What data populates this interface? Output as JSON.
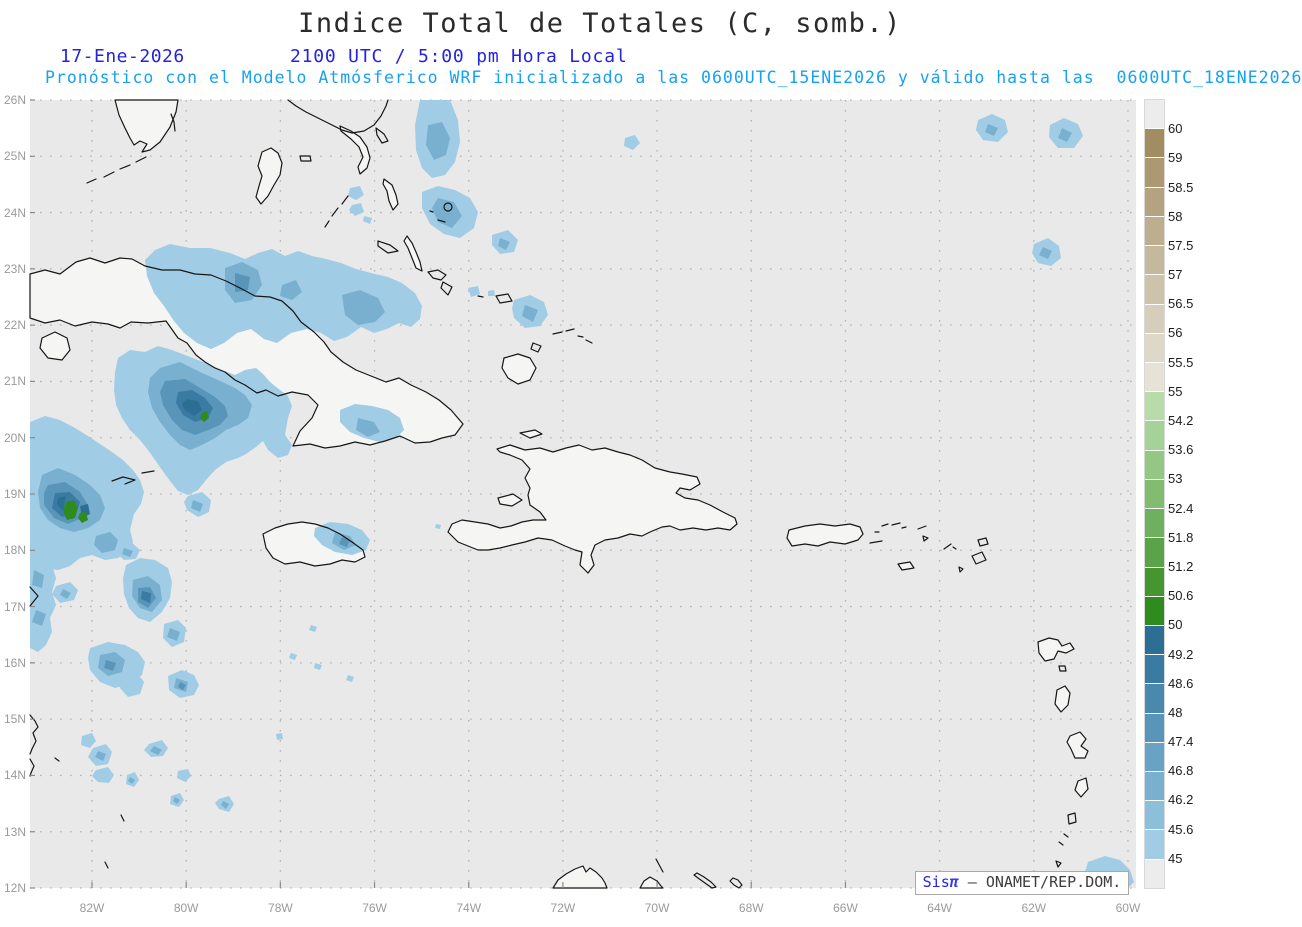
{
  "title": "Indice Total de Totales (C, somb.)",
  "subtitle": {
    "date": "17-Ene-2026",
    "time": "2100 UTC / 5:00 pm Hora Local"
  },
  "forecast_line": "Pronóstico con el Modelo Atmósferico WRF inicializado a las 0600UTC_15ENE2026 y válido hasta las  0600UTC_18ENE2026",
  "map": {
    "lat_labels": [
      "26N",
      "25N",
      "24N",
      "23N",
      "22N",
      "21N",
      "20N",
      "19N",
      "18N",
      "17N",
      "16N",
      "15N",
      "14N",
      "13N",
      "12N"
    ],
    "lon_labels": [
      "82W",
      "80W",
      "78W",
      "76W",
      "74W",
      "72W",
      "70W",
      "68W",
      "66W",
      "64W",
      "62W",
      "60W"
    ],
    "background_color": "#e9e9e9",
    "land_color": "#f5f5f3",
    "coast_color": "#161616",
    "grid_color": "#b4b4b4"
  },
  "colorbar": {
    "labels": [
      "60",
      "59",
      "58.5",
      "58",
      "57.5",
      "57",
      "56.5",
      "56",
      "55.5",
      "55",
      "54.2",
      "53.6",
      "53",
      "52.4",
      "51.8",
      "51.2",
      "50.6",
      "50",
      "49.2",
      "48.6",
      "48",
      "47.4",
      "46.8",
      "46.2",
      "45.6",
      "45"
    ],
    "colors": [
      "#ececec",
      "#a28d63",
      "#ac9972",
      "#b4a380",
      "#bdae8f",
      "#c5b99d",
      "#cdc3ab",
      "#d6ceba",
      "#ded8c8",
      "#e6e2d6",
      "#b7dcaa",
      "#a5d296",
      "#93c783",
      "#81bc70",
      "#6fb05e",
      "#5aa348",
      "#469630",
      "#2f8b1d",
      "#2d6e94",
      "#3a7ba4",
      "#4a88ae",
      "#5995b9",
      "#68a2c4",
      "#79b0cf",
      "#8cbfda",
      "#a0cde5",
      "#ececec"
    ]
  },
  "shading_levels": {
    "L1": "#a0cde5",
    "L2": "#79b0cf",
    "L3": "#5995b9",
    "L4": "#3a7ba4",
    "L5": "#2d6e94",
    "green": "#2f8b1d"
  },
  "branding": {
    "sis": "Sis",
    "pi": "π",
    "rest": " – ONAMET/REP.DOM."
  },
  "colors": {
    "title_text": "#2b2b2b",
    "subtitle_text": "#2424dd",
    "forecast_text": "#16a2f0",
    "axis_text": "#9a9a9a"
  }
}
